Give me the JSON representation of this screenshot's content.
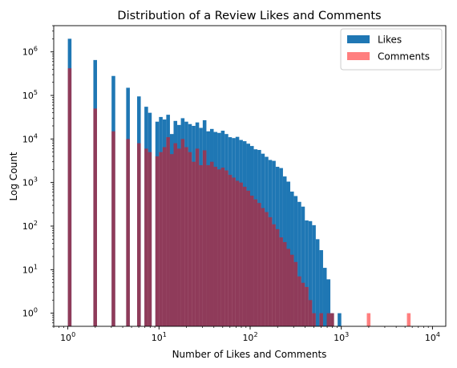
{
  "chart_data": {
    "type": "bar",
    "title": "Distribution of a Review Likes and Comments",
    "xlabel": "Number of Likes and Comments",
    "ylabel": "Log Count",
    "xscale": "log",
    "yscale": "log",
    "xlim": [
      0.7,
      14000
    ],
    "ylim": [
      0.5,
      4000000
    ],
    "x_ticks": [
      {
        "value": 1,
        "base": "10",
        "exp": "0"
      },
      {
        "value": 10,
        "base": "10",
        "exp": "1"
      },
      {
        "value": 100,
        "base": "10",
        "exp": "2"
      },
      {
        "value": 1000,
        "base": "10",
        "exp": "3"
      },
      {
        "value": 10000,
        "base": "10",
        "exp": "4"
      }
    ],
    "y_ticks": [
      {
        "value": 1,
        "base": "10",
        "exp": "0"
      },
      {
        "value": 10,
        "base": "10",
        "exp": "1"
      },
      {
        "value": 100,
        "base": "10",
        "exp": "2"
      },
      {
        "value": 1000,
        "base": "10",
        "exp": "3"
      },
      {
        "value": 10000,
        "base": "10",
        "exp": "4"
      },
      {
        "value": 100000,
        "base": "10",
        "exp": "5"
      },
      {
        "value": 1000000,
        "base": "10",
        "exp": "6"
      }
    ],
    "bin_edges": [
      1.0,
      1.0965,
      1.2023,
      1.3183,
      1.4454,
      1.5849,
      1.7378,
      1.9055,
      2.0893,
      2.2909,
      2.5119,
      2.7542,
      3.02,
      3.3113,
      3.6308,
      3.9811,
      4.3652,
      4.7863,
      5.2481,
      5.7544,
      6.3096,
      6.9183,
      7.5858,
      8.3176,
      9.1201,
      10.0,
      10.965,
      12.023,
      13.183,
      14.454,
      15.849,
      17.378,
      19.055,
      20.893,
      22.909,
      25.119,
      27.542,
      30.2,
      33.113,
      36.308,
      39.811,
      43.652,
      47.863,
      52.481,
      57.544,
      63.096,
      69.183,
      75.858,
      83.176,
      91.201,
      100.0,
      109.65,
      120.23,
      131.83,
      144.54,
      158.49,
      173.78,
      190.55,
      208.93,
      229.09,
      251.19,
      275.42,
      302.0,
      331.13,
      363.08,
      398.11,
      436.52,
      478.63,
      524.81,
      575.44,
      630.96,
      691.83,
      758.58,
      831.76,
      912.01,
      1000.0,
      1096.5,
      1202.3,
      1318.3,
      1445.4,
      1584.9,
      1737.8,
      1905.5,
      2089.3,
      2290.9,
      2511.9,
      2754.2,
      3020.0,
      3311.3,
      3630.8,
      3981.1,
      4365.2,
      4786.3,
      5248.1,
      5754.4,
      6309.6,
      6918.3,
      7585.8,
      8317.6,
      9120.1,
      10000.0
    ],
    "series": [
      {
        "name": "Likes",
        "color": "#1f77b4",
        "opacity": 1,
        "counts": [
          2000000,
          0,
          0,
          0,
          0,
          0,
          0,
          650000,
          0,
          0,
          0,
          0,
          280000,
          0,
          0,
          0,
          150000,
          0,
          0,
          95000,
          0,
          55000,
          40000,
          0,
          25000,
          32000,
          28000,
          36000,
          13000,
          26000,
          21000,
          30000,
          25000,
          22000,
          20000,
          24000,
          18000,
          27000,
          15000,
          17000,
          14500,
          13800,
          15500,
          13000,
          11000,
          10500,
          11200,
          9500,
          8900,
          7800,
          6900,
          5800,
          5600,
          4600,
          3900,
          3300,
          3150,
          2300,
          2150,
          1380,
          1050,
          620,
          490,
          360,
          280,
          135,
          130,
          105,
          50,
          28,
          11,
          6,
          1,
          0,
          1,
          0,
          0,
          0,
          0,
          0,
          0,
          0,
          0,
          0,
          0,
          0,
          0,
          0,
          0,
          0,
          0,
          0,
          0,
          0,
          0,
          0,
          0,
          0,
          0,
          0
        ]
      },
      {
        "name": "Comments",
        "color": "#ff0000",
        "opacity": 0.5,
        "counts": [
          420000,
          0,
          0,
          0,
          0,
          0,
          0,
          50000,
          0,
          0,
          0,
          0,
          15000,
          0,
          0,
          0,
          10000,
          0,
          0,
          8000,
          0,
          6000,
          5000,
          0,
          4000,
          5000,
          6500,
          11000,
          4500,
          8000,
          6000,
          10000,
          6500,
          5000,
          3000,
          6000,
          2500,
          5500,
          2500,
          3000,
          2300,
          2000,
          2200,
          1900,
          1500,
          1300,
          1100,
          1000,
          800,
          650,
          500,
          410,
          340,
          260,
          210,
          160,
          110,
          85,
          55,
          43,
          30,
          22,
          15,
          7,
          5,
          4,
          2,
          1,
          0,
          1,
          0,
          1,
          1,
          0,
          0,
          0,
          0,
          0,
          0,
          0,
          0,
          0,
          1,
          0,
          0,
          0,
          0,
          0,
          0,
          0,
          0,
          0,
          0,
          1,
          0,
          0,
          0,
          0,
          0,
          0
        ]
      }
    ],
    "legend": {
      "placement": "upper right",
      "entries": [
        {
          "label": "Likes",
          "color": "#1f77b4",
          "opacity": 1
        },
        {
          "label": "Comments",
          "color": "#ff0000",
          "opacity": 0.5
        }
      ]
    }
  }
}
